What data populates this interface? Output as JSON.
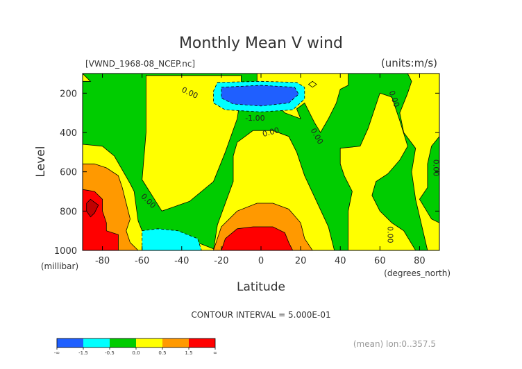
{
  "chart_data": {
    "type": "heatmap",
    "title": "Monthly Mean V wind",
    "file_label": "[VWND_1968-08_NCEP.nc]",
    "units_label": "(units:m/s)",
    "xlabel": "Latitude",
    "x_units": "(degrees_north)",
    "ylabel": "Level",
    "y_units": "(millibar)",
    "x_ticks": [
      "-80",
      "-60",
      "-40",
      "-20",
      "0",
      "20",
      "40",
      "60",
      "80"
    ],
    "x_tick_values": [
      -80,
      -60,
      -40,
      -20,
      0,
      20,
      40,
      60,
      80
    ],
    "y_ticks": [
      "200",
      "400",
      "600",
      "800",
      "1000"
    ],
    "y_tick_values": [
      200,
      400,
      600,
      800,
      1000
    ],
    "xlim": [
      -90,
      90
    ],
    "ylim": [
      1000,
      100
    ],
    "contour_interval_text": "CONTOUR INTERVAL = 5.000E-01",
    "footer_text": "(mean) lon:0..357.5",
    "contour_labels": [
      {
        "text": "0.00",
        "lat": -36,
        "lev": 200,
        "angle": 25
      },
      {
        "text": "0.00",
        "lat": 67,
        "lev": 230,
        "angle": 70
      },
      {
        "text": "0.00",
        "lat": 5,
        "lev": 400,
        "angle": -15
      },
      {
        "text": "0.00",
        "lat": 28,
        "lev": 420,
        "angle": 60
      },
      {
        "text": "0.00",
        "lat": 88,
        "lev": 580,
        "angle": 90
      },
      {
        "text": "0.00",
        "lat": -57,
        "lev": 750,
        "angle": 45
      },
      {
        "text": "0.00",
        "lat": 65,
        "lev": 920,
        "angle": 90
      },
      {
        "text": "-1.00",
        "lat": -3,
        "lev": 330,
        "angle": 0
      }
    ],
    "colorbar": {
      "colors": [
        "#1f5fff",
        "#00ffff",
        "#00cc00",
        "#ffff00",
        "#ff9900",
        "#ff0000"
      ],
      "labels": [
        "-∞",
        "-1.5",
        "-0.5",
        "0.0",
        "0.5",
        "1.5",
        "∞"
      ]
    },
    "fill_colors": {
      "green": "#00cc00",
      "yellow": "#ffff00",
      "orange": "#ff9900",
      "red": "#ff0000",
      "dark_red": "#c00000",
      "cyan": "#00ffff",
      "blue": "#1f5fff"
    },
    "regions": [
      {
        "color": "yellow",
        "pts": [
          [
            -58,
            110
          ],
          [
            -10,
            110
          ],
          [
            -10,
            200
          ],
          [
            -12,
            330
          ],
          [
            -18,
            500
          ],
          [
            -24,
            650
          ],
          [
            -36,
            750
          ],
          [
            -50,
            800
          ],
          [
            -60,
            640
          ],
          [
            -58,
            400
          ]
        ]
      },
      {
        "color": "yellow",
        "pts": [
          [
            -90,
            100
          ],
          [
            -88,
            120
          ],
          [
            -86,
            140
          ],
          [
            -90,
            140
          ]
        ]
      },
      {
        "color": "yellow",
        "pts": [
          [
            -90,
            460
          ],
          [
            -80,
            470
          ],
          [
            -74,
            520
          ],
          [
            -70,
            590
          ],
          [
            -66,
            660
          ],
          [
            -64,
            700
          ],
          [
            -62,
            850
          ],
          [
            -60,
            900
          ],
          [
            -52,
            930
          ],
          [
            -42,
            940
          ],
          [
            -32,
            960
          ],
          [
            -22,
            1000
          ],
          [
            -90,
            1000
          ]
        ]
      },
      {
        "color": "yellow",
        "pts": [
          [
            -24,
            1000
          ],
          [
            -22,
            870
          ],
          [
            -18,
            760
          ],
          [
            -14,
            650
          ],
          [
            -14,
            520
          ],
          [
            -12,
            450
          ],
          [
            -4,
            390
          ],
          [
            6,
            390
          ],
          [
            14,
            420
          ],
          [
            18,
            500
          ],
          [
            22,
            620
          ],
          [
            28,
            750
          ],
          [
            34,
            880
          ],
          [
            37,
            1000
          ]
        ]
      },
      {
        "color": "yellow",
        "pts": [
          [
            -2,
            100
          ],
          [
            44,
            100
          ],
          [
            44,
            160
          ],
          [
            40,
            180
          ],
          [
            38,
            250
          ],
          [
            34,
            330
          ],
          [
            30,
            400
          ],
          [
            27,
            350
          ],
          [
            22,
            250
          ],
          [
            18,
            280
          ],
          [
            20,
            330
          ],
          [
            12,
            300
          ],
          [
            8,
            260
          ],
          [
            -2,
            290
          ]
        ]
      },
      {
        "color": "yellow",
        "pts": [
          [
            26,
            140
          ],
          [
            28,
            155
          ],
          [
            26,
            170
          ],
          [
            24,
            155
          ]
        ]
      },
      {
        "color": "yellow",
        "pts": [
          [
            40,
            480
          ],
          [
            50,
            470
          ],
          [
            54,
            380
          ],
          [
            60,
            200
          ],
          [
            66,
            220
          ],
          [
            70,
            340
          ],
          [
            74,
            470
          ],
          [
            70,
            540
          ],
          [
            64,
            610
          ],
          [
            58,
            650
          ],
          [
            56,
            720
          ],
          [
            60,
            800
          ],
          [
            66,
            860
          ],
          [
            72,
            900
          ],
          [
            78,
            1000
          ],
          [
            44,
            1000
          ],
          [
            44,
            800
          ],
          [
            46,
            700
          ],
          [
            42,
            620
          ],
          [
            40,
            560
          ]
        ]
      },
      {
        "color": "yellow",
        "pts": [
          [
            74,
            100
          ],
          [
            90,
            100
          ],
          [
            90,
            420
          ],
          [
            86,
            470
          ],
          [
            84,
            560
          ],
          [
            84,
            680
          ],
          [
            80,
            740
          ],
          [
            86,
            840
          ],
          [
            90,
            860
          ],
          [
            90,
            1000
          ],
          [
            84,
            1000
          ],
          [
            78,
            740
          ],
          [
            76,
            600
          ],
          [
            78,
            480
          ],
          [
            72,
            400
          ],
          [
            70,
            300
          ],
          [
            74,
            200
          ],
          [
            76,
            140
          ]
        ]
      },
      {
        "color": "orange",
        "pts": [
          [
            -90,
            560
          ],
          [
            -84,
            560
          ],
          [
            -78,
            580
          ],
          [
            -72,
            620
          ],
          [
            -70,
            680
          ],
          [
            -68,
            760
          ],
          [
            -66,
            840
          ],
          [
            -68,
            900
          ],
          [
            -66,
            960
          ],
          [
            -62,
            1000
          ],
          [
            -90,
            1000
          ]
        ]
      },
      {
        "color": "orange",
        "pts": [
          [
            -24,
            1000
          ],
          [
            -20,
            880
          ],
          [
            -12,
            800
          ],
          [
            -2,
            760
          ],
          [
            6,
            760
          ],
          [
            14,
            790
          ],
          [
            20,
            860
          ],
          [
            22,
            940
          ],
          [
            26,
            1000
          ]
        ]
      },
      {
        "color": "red",
        "pts": [
          [
            -90,
            690
          ],
          [
            -84,
            700
          ],
          [
            -80,
            740
          ],
          [
            -80,
            800
          ],
          [
            -78,
            860
          ],
          [
            -78,
            900
          ],
          [
            -72,
            920
          ],
          [
            -72,
            1000
          ],
          [
            -90,
            1000
          ]
        ]
      },
      {
        "color": "red",
        "pts": [
          [
            -20,
            1000
          ],
          [
            -18,
            940
          ],
          [
            -12,
            890
          ],
          [
            -4,
            880
          ],
          [
            6,
            880
          ],
          [
            12,
            910
          ],
          [
            14,
            960
          ],
          [
            16,
            1000
          ]
        ]
      },
      {
        "color": "dark_red",
        "pts": [
          [
            -86,
            740
          ],
          [
            -82,
            770
          ],
          [
            -84,
            810
          ],
          [
            -86,
            830
          ],
          [
            -88,
            800
          ],
          [
            -88,
            760
          ]
        ]
      },
      {
        "color": "cyan",
        "pts": [
          [
            -60,
            1000
          ],
          [
            -60,
            900
          ],
          [
            -52,
            890
          ],
          [
            -42,
            900
          ],
          [
            -32,
            940
          ],
          [
            -30,
            1000
          ]
        ]
      },
      {
        "color": "cyan",
        "pts": [
          [
            -22,
            145
          ],
          [
            0,
            140
          ],
          [
            18,
            145
          ],
          [
            22,
            170
          ],
          [
            22,
            230
          ],
          [
            16,
            285
          ],
          [
            0,
            295
          ],
          [
            -18,
            285
          ],
          [
            -24,
            250
          ],
          [
            -24,
            190
          ]
        ]
      },
      {
        "color": "blue",
        "pts": [
          [
            -20,
            170
          ],
          [
            0,
            160
          ],
          [
            17,
            170
          ],
          [
            19,
            205
          ],
          [
            14,
            250
          ],
          [
            0,
            265
          ],
          [
            -14,
            255
          ],
          [
            -20,
            225
          ]
        ]
      }
    ]
  }
}
